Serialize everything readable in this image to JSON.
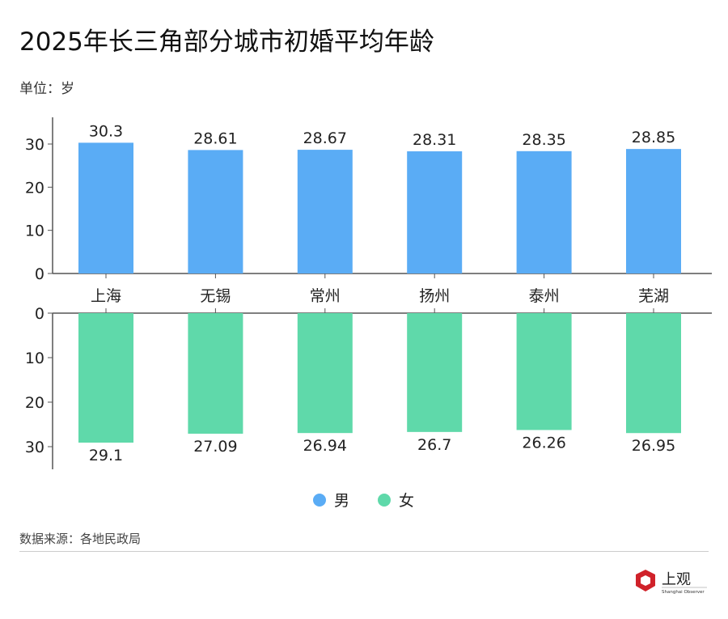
{
  "title": "2025年长三角部分城市初婚平均年龄",
  "unit": "单位：岁",
  "source": "数据来源：各地民政局",
  "logo": {
    "text": "上观",
    "subtext": "Shanghai Observer"
  },
  "chart_data": {
    "type": "bar",
    "title": "2025年长三角部分城市初婚平均年龄",
    "categories": [
      "上海",
      "无锡",
      "常州",
      "扬州",
      "泰州",
      "芜湖"
    ],
    "series": [
      {
        "name": "男",
        "values": [
          30.3,
          28.61,
          28.67,
          28.31,
          28.35,
          28.85
        ],
        "color": "#5aacf5"
      },
      {
        "name": "女",
        "values": [
          29.1,
          27.09,
          26.94,
          26.7,
          26.26,
          26.95
        ],
        "color": "#5fd9aa"
      }
    ],
    "yticks": [
      0,
      10,
      20,
      30
    ],
    "ylim": [
      0,
      30
    ],
    "ylabel": "单位：岁",
    "legend": "bottom-center",
    "grid": false
  }
}
